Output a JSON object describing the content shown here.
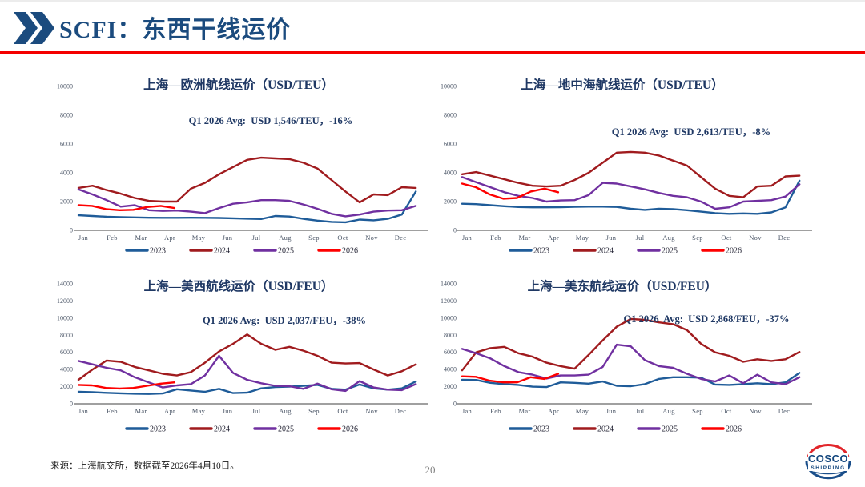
{
  "header": {
    "title": "SCFI：东西干线运价"
  },
  "footer": {
    "source_note": "来源：上海航交所，数据截至2026年4月10日。",
    "page_number": "20"
  },
  "logo": {
    "line1": "COSCO",
    "line2": "SHIPPING"
  },
  "colors": {
    "title_blue": "#1B4B7E",
    "chart_text_navy": "#1F3864",
    "rule_red": "#F40000",
    "series_2023": "#1F5C99",
    "series_2024": "#A01B1E",
    "series_2025": "#7030A0",
    "series_2026": "#FE0000"
  },
  "months": [
    "Jan",
    "Feb",
    "Mar",
    "Apr",
    "May",
    "Jun",
    "Jul",
    "Aug",
    "Sep",
    "Oct",
    "Nov",
    "Dec"
  ],
  "chart_data": [
    {
      "id": "shanghai-europe",
      "type": "line",
      "title": "上海—欧洲航线运价（USD/TEU）",
      "annotation": "Q1 2026 Avg:  USD 1,546/TEU，-16%",
      "unit": "USD/TEU",
      "ylim": [
        0,
        10000
      ],
      "ytick_step": 2000,
      "grid": false,
      "legend_position": "bottom",
      "series": [
        {
          "name": "2023",
          "color": "#1F5C99",
          "x_end": 11.7,
          "values": [
            1050,
            1000,
            950,
            920,
            900,
            880,
            870,
            870,
            880,
            870,
            860,
            840,
            810,
            790,
            1000,
            960,
            800,
            680,
            590,
            560,
            750,
            700,
            800,
            1100,
            2700
          ]
        },
        {
          "name": "2024",
          "color": "#A01B1E",
          "x_end": 11.7,
          "values": [
            2950,
            3100,
            2800,
            2550,
            2250,
            2050,
            2000,
            2000,
            2900,
            3300,
            3900,
            4400,
            4900,
            5050,
            5000,
            4950,
            4700,
            4300,
            3500,
            2700,
            1950,
            2500,
            2450,
            3000,
            2950
          ]
        },
        {
          "name": "2025",
          "color": "#7030A0",
          "x_end": 11.7,
          "values": [
            2850,
            2500,
            2100,
            1650,
            1750,
            1400,
            1350,
            1380,
            1300,
            1200,
            1550,
            1850,
            1950,
            2100,
            2100,
            2050,
            1800,
            1500,
            1150,
            980,
            1100,
            1300,
            1380,
            1400,
            1700
          ]
        },
        {
          "name": "2026",
          "color": "#FE0000",
          "x_end": 3.33,
          "values": [
            1750,
            1700,
            1480,
            1400,
            1430,
            1620,
            1700,
            1550
          ]
        }
      ]
    },
    {
      "id": "shanghai-mediterranean",
      "type": "line",
      "title": "上海—地中海航线运价（USD/TEU）",
      "annotation": "Q1 2026 Avg:  USD 2,613/TEU，-8%",
      "unit": "USD/TEU",
      "ylim": [
        0,
        10000
      ],
      "ytick_step": 2000,
      "grid": false,
      "legend_position": "bottom",
      "series": [
        {
          "name": "2023",
          "color": "#1F5C99",
          "x_end": 11.7,
          "values": [
            1850,
            1820,
            1750,
            1680,
            1620,
            1600,
            1600,
            1610,
            1640,
            1650,
            1650,
            1630,
            1500,
            1420,
            1500,
            1480,
            1400,
            1300,
            1200,
            1150,
            1180,
            1150,
            1250,
            1600,
            3450
          ]
        },
        {
          "name": "2024",
          "color": "#A01B1E",
          "x_end": 11.7,
          "values": [
            3900,
            4050,
            3800,
            3550,
            3300,
            3100,
            3050,
            3100,
            3500,
            4000,
            4700,
            5400,
            5450,
            5400,
            5200,
            4850,
            4500,
            3700,
            2900,
            2400,
            2300,
            3050,
            3100,
            3750,
            3800
          ]
        },
        {
          "name": "2025",
          "color": "#7030A0",
          "x_end": 11.7,
          "values": [
            3700,
            3350,
            3000,
            2650,
            2400,
            2250,
            2000,
            2080,
            2100,
            2450,
            3300,
            3250,
            3050,
            2850,
            2600,
            2400,
            2300,
            2000,
            1500,
            1600,
            2000,
            2050,
            2100,
            2350,
            3200
          ]
        },
        {
          "name": "2026",
          "color": "#FE0000",
          "x_end": 3.33,
          "values": [
            3250,
            3000,
            2500,
            2200,
            2250,
            2700,
            2900,
            2650
          ]
        }
      ]
    },
    {
      "id": "shanghai-uswc",
      "type": "line",
      "title": "上海—美西航线运价（USD/FEU）",
      "annotation": "Q1 2026 Avg:  USD 2,037/FEU，-38%",
      "unit": "USD/FEU",
      "ylim": [
        0,
        14000
      ],
      "ytick_step": 2000,
      "grid": false,
      "legend_position": "bottom",
      "series": [
        {
          "name": "2023",
          "color": "#1F5C99",
          "x_end": 11.7,
          "values": [
            1400,
            1350,
            1280,
            1220,
            1180,
            1150,
            1200,
            1700,
            1550,
            1400,
            1750,
            1250,
            1300,
            1800,
            1950,
            2000,
            2100,
            2200,
            1750,
            1650,
            2250,
            1800,
            1650,
            1800,
            2600
          ]
        },
        {
          "name": "2024",
          "color": "#A01B1E",
          "x_end": 11.7,
          "values": [
            2800,
            4000,
            5050,
            4900,
            4300,
            3900,
            3500,
            3300,
            3700,
            4800,
            6100,
            7000,
            8100,
            7000,
            6300,
            6650,
            6200,
            5600,
            4800,
            4700,
            4750,
            4000,
            3300,
            3800,
            4600
          ]
        },
        {
          "name": "2025",
          "color": "#7030A0",
          "x_end": 11.7,
          "values": [
            5000,
            4600,
            4200,
            3900,
            3100,
            2500,
            1900,
            2150,
            2300,
            3300,
            5600,
            3600,
            2800,
            2400,
            2100,
            2050,
            1750,
            2350,
            1700,
            1500,
            2650,
            1900,
            1650,
            1600,
            2300
          ]
        },
        {
          "name": "2026",
          "color": "#FE0000",
          "x_end": 3.33,
          "values": [
            2200,
            2150,
            1850,
            1780,
            1850,
            2100,
            2350,
            2500
          ]
        }
      ]
    },
    {
      "id": "shanghai-usec",
      "type": "line",
      "title": "上海—美东航线运价（USD/FEU）",
      "annotation": "Q1 2026  Avg:  USD 2,868/FEU，-37%",
      "unit": "USD/FEU",
      "ylim": [
        0,
        14000
      ],
      "ytick_step": 2000,
      "grid": false,
      "legend_position": "bottom",
      "series": [
        {
          "name": "2023",
          "color": "#1F5C99",
          "x_end": 11.7,
          "values": [
            2800,
            2780,
            2450,
            2300,
            2200,
            2000,
            1950,
            2500,
            2450,
            2350,
            2600,
            2100,
            2050,
            2300,
            2900,
            3100,
            3100,
            3050,
            2250,
            2200,
            2300,
            2400,
            2300,
            2500,
            3600
          ]
        },
        {
          "name": "2024",
          "color": "#A01B1E",
          "x_end": 11.7,
          "values": [
            3900,
            6000,
            6500,
            6650,
            5900,
            5500,
            4800,
            4400,
            4100,
            5700,
            7400,
            9000,
            9900,
            9800,
            9500,
            9300,
            8600,
            7000,
            6000,
            5600,
            4900,
            5200,
            5000,
            5200,
            6050
          ]
        },
        {
          "name": "2025",
          "color": "#7030A0",
          "x_end": 11.7,
          "values": [
            6400,
            5900,
            5300,
            4400,
            3700,
            3400,
            2950,
            3300,
            3300,
            3400,
            4300,
            6900,
            6700,
            5100,
            4400,
            4200,
            3500,
            2900,
            2600,
            3300,
            2400,
            3400,
            2500,
            2300,
            3100
          ]
        },
        {
          "name": "2026",
          "color": "#FE0000",
          "x_end": 3.33,
          "values": [
            3200,
            3150,
            2700,
            2500,
            2500,
            3100,
            2900,
            3500
          ]
        }
      ]
    }
  ]
}
